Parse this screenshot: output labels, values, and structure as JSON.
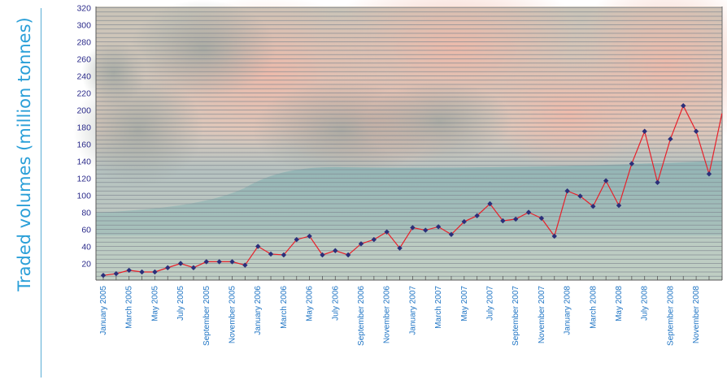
{
  "colors": {
    "line": "#e8202a",
    "marker": "#2b2f7a",
    "ylabel": "#2a9fd8",
    "xtick": "#1e74c4",
    "ytick": "#2a2a8a",
    "grid": "#7f8690"
  },
  "chart_data": {
    "type": "line",
    "ylabel": "Traded volumes (million tonnes)",
    "xlabel": "",
    "ylim": [
      0,
      320
    ],
    "yticks": [
      20,
      40,
      60,
      80,
      100,
      120,
      140,
      160,
      180,
      200,
      220,
      240,
      260,
      280,
      300,
      320
    ],
    "grid": true,
    "background": "photo of ocean wave under clouds",
    "x": [
      "January 2005",
      "February 2005",
      "March 2005",
      "April 2005",
      "May 2005",
      "June 2005",
      "July 2005",
      "August 2005",
      "September 2005",
      "October 2005",
      "November 2005",
      "December 2005",
      "January 2006",
      "February 2006",
      "March 2006",
      "April 2006",
      "May 2006",
      "June 2006",
      "July 2006",
      "August 2006",
      "September 2006",
      "October 2006",
      "November 2006",
      "December 2006",
      "January 2007",
      "February 2007",
      "March 2007",
      "April 2007",
      "May 2007",
      "June 2007",
      "July 2007",
      "August 2007",
      "September 2007",
      "October 2007",
      "November 2007",
      "December 2007",
      "January 2008",
      "February 2008",
      "March 2008",
      "April 2008",
      "May 2008",
      "June 2008",
      "July 2008",
      "August 2008",
      "September 2008",
      "October 2008",
      "November 2008",
      "December 2008",
      "January 2009"
    ],
    "xtick_labels": [
      "January 2005",
      "March 2005",
      "May 2005",
      "July 2005",
      "September 2005",
      "November 2005",
      "January 2006",
      "March 2006",
      "May 2006",
      "July 2006",
      "September 2006",
      "November 2006",
      "January 2007",
      "March 2007",
      "May 2007",
      "July 2007",
      "September 2007",
      "November 2007",
      "January 2008",
      "March 2008",
      "May 2008",
      "July 2008",
      "September 2008",
      "November 2008"
    ],
    "series": [
      {
        "values": [
          6,
          8,
          12,
          10,
          10,
          15,
          20,
          15,
          22,
          22,
          22,
          18,
          40,
          31,
          30,
          48,
          52,
          30,
          35,
          30,
          43,
          48,
          57,
          38,
          62,
          59,
          63,
          54,
          69,
          76,
          90,
          70,
          72,
          80,
          73,
          52,
          105,
          99,
          87,
          117,
          88,
          137,
          175,
          115,
          166,
          205,
          175,
          125,
          196
        ]
      }
    ]
  }
}
